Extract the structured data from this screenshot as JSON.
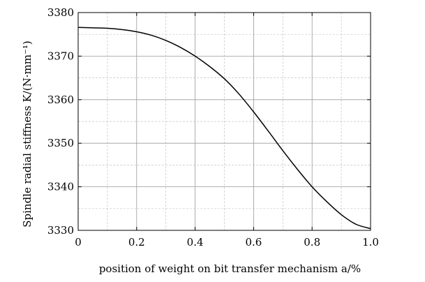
{
  "chart_data": {
    "type": "line",
    "xlabel": "position of weight on bit transfer mechanism a/%",
    "ylabel": "Spindle radial stiffness K/(N·mm⁻¹)",
    "xlim": [
      0,
      1.0
    ],
    "ylim": [
      3330,
      3380
    ],
    "x_ticks": [
      0,
      0.2,
      0.4,
      0.6,
      0.8,
      1.0
    ],
    "x_tick_labels": [
      "0",
      "0.2",
      "0.4",
      "0.6",
      "0.8",
      "1.0"
    ],
    "y_ticks": [
      3330,
      3340,
      3350,
      3360,
      3370,
      3380
    ],
    "y_tick_labels": [
      "3330",
      "3340",
      "3350",
      "3360",
      "3370",
      "3380"
    ],
    "grid": true,
    "series": [
      {
        "x": [
          0,
          0.05,
          0.1,
          0.15,
          0.2,
          0.25,
          0.3,
          0.35,
          0.4,
          0.45,
          0.5,
          0.55,
          0.6,
          0.65,
          0.7,
          0.75,
          0.8,
          0.85,
          0.9,
          0.95,
          1.0
        ],
        "values": [
          3376.6,
          3376.5,
          3376.4,
          3376.1,
          3375.6,
          3374.8,
          3373.6,
          3372.0,
          3370.0,
          3367.6,
          3364.8,
          3361.3,
          3357.2,
          3352.8,
          3348.3,
          3344.0,
          3340.0,
          3336.6,
          3333.6,
          3331.4,
          3330.4
        ]
      }
    ]
  }
}
